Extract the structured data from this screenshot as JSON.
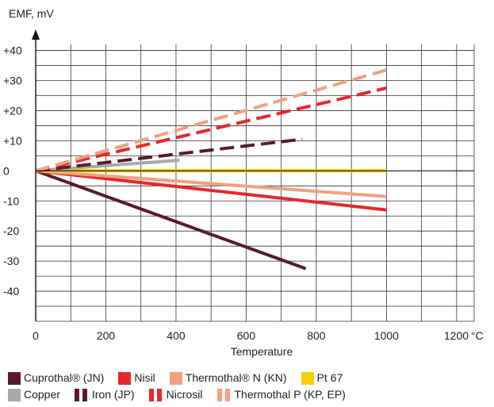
{
  "chart_data": {
    "type": "line",
    "ylabel": "EMF, mV",
    "xlabel": "Temperature",
    "x_unit_suffix": "°C",
    "xlim": [
      0,
      1250
    ],
    "ylim": [
      -50,
      42
    ],
    "x_ticks": [
      0,
      200,
      400,
      600,
      800,
      1000,
      1200
    ],
    "x_tick_labels": [
      "0",
      "200",
      "400",
      "600",
      "800",
      "1000",
      "1200"
    ],
    "y_ticks": [
      40,
      30,
      20,
      10,
      0,
      -10,
      -20,
      -30,
      -40
    ],
    "y_tick_labels": [
      "+40",
      "+30",
      "+20",
      "+10",
      "0",
      "-10",
      "-20",
      "-30",
      "-40"
    ],
    "grid": true,
    "series": [
      {
        "name": "Cuprothal® (JN)",
        "color": "#5a1a2c",
        "dashed": false,
        "x": [
          0,
          770
        ],
        "y": [
          0,
          -32.5
        ]
      },
      {
        "name": "Nisil",
        "color": "#e8262b",
        "dashed": false,
        "x": [
          0,
          1000
        ],
        "y": [
          0,
          -13
        ]
      },
      {
        "name": "Thermothal® N (KN)",
        "color": "#f2a07e",
        "dashed": false,
        "x": [
          0,
          1000
        ],
        "y": [
          0,
          -8.5
        ]
      },
      {
        "name": "Pt 67",
        "color": "#f7d000",
        "dashed": false,
        "x": [
          0,
          1000
        ],
        "y": [
          0,
          0
        ]
      },
      {
        "name": "Copper",
        "color": "#a9a9a9",
        "dashed": false,
        "x": [
          0,
          410
        ],
        "y": [
          0,
          3.5
        ]
      },
      {
        "name": "Iron (JP)",
        "color": "#5a1a2c",
        "dashed": true,
        "x": [
          0,
          760
        ],
        "y": [
          0,
          10.5
        ]
      },
      {
        "name": "Nicrosil",
        "color": "#e8262b",
        "dashed": true,
        "x": [
          0,
          1000
        ],
        "y": [
          0,
          27.5
        ]
      },
      {
        "name": "Thermothal P (KP, EP)",
        "color": "#f2a07e",
        "dashed": true,
        "x": [
          0,
          1000
        ],
        "y": [
          0,
          33.5
        ]
      }
    ],
    "legend_rows": [
      [
        0,
        1,
        2,
        3
      ],
      [
        4,
        5,
        6,
        7
      ]
    ],
    "legend_position": "bottom"
  }
}
